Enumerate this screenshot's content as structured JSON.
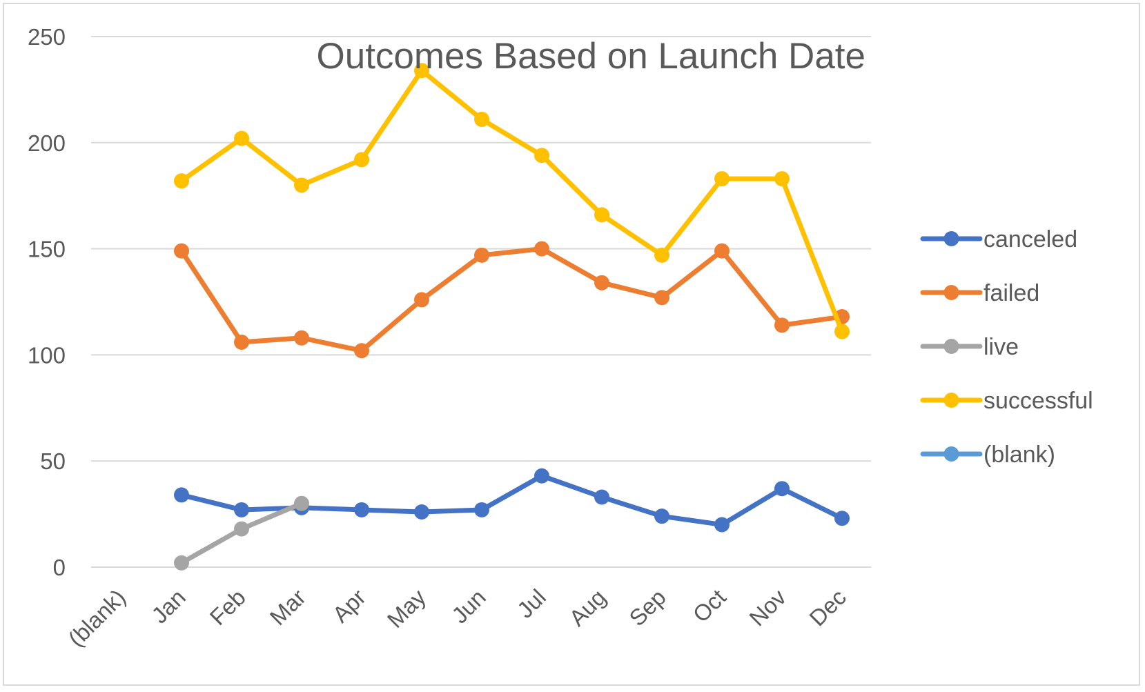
{
  "chart_data": {
    "type": "line",
    "title": "Outcomes Based on Launch Date",
    "xlabel": "",
    "ylabel": "",
    "categories": [
      "(blank)",
      "Jan",
      "Feb",
      "Mar",
      "Apr",
      "May",
      "Jun",
      "Jul",
      "Aug",
      "Sep",
      "Oct",
      "Nov",
      "Dec"
    ],
    "ylim": [
      0,
      250
    ],
    "yticks": [
      "0",
      "50",
      "100",
      "150",
      "200",
      "250"
    ],
    "grid": true,
    "legend_position": "right",
    "markers": true,
    "series": [
      {
        "name": "canceled",
        "color": "#4472c4",
        "values": [
          null,
          34,
          27,
          28,
          27,
          26,
          27,
          43,
          33,
          24,
          20,
          37,
          23
        ]
      },
      {
        "name": "failed",
        "color": "#ed7d31",
        "values": [
          null,
          149,
          106,
          108,
          102,
          126,
          147,
          150,
          134,
          127,
          149,
          114,
          118
        ]
      },
      {
        "name": "live",
        "color": "#a5a5a5",
        "values": [
          null,
          2,
          18,
          30,
          null,
          null,
          null,
          null,
          null,
          null,
          null,
          null,
          null
        ]
      },
      {
        "name": "successful",
        "color": "#ffc000",
        "values": [
          null,
          182,
          202,
          180,
          192,
          234,
          211,
          194,
          166,
          147,
          183,
          183,
          111
        ]
      },
      {
        "name": "(blank)",
        "color": "#5b9bd5",
        "values": [
          null,
          null,
          null,
          null,
          null,
          null,
          null,
          null,
          null,
          null,
          null,
          null,
          null
        ]
      }
    ]
  }
}
